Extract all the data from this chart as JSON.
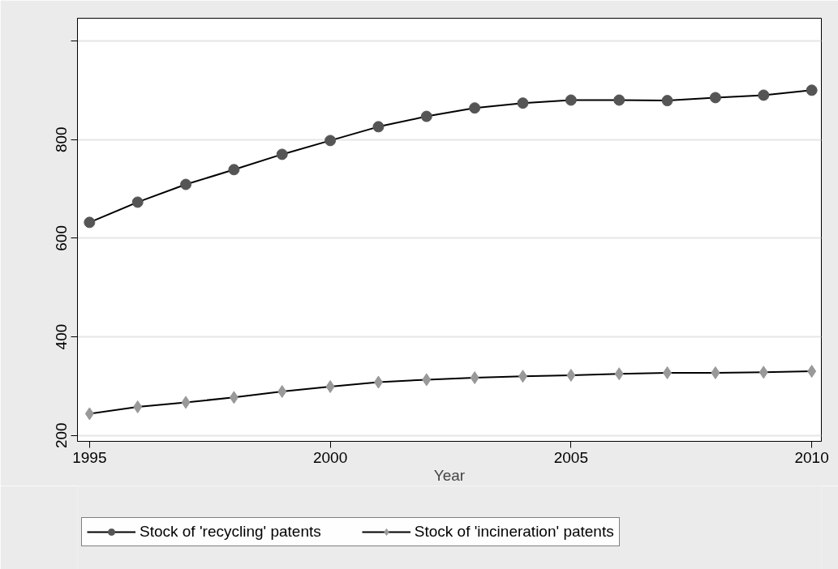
{
  "chart_data": {
    "type": "line",
    "xlabel": "Year",
    "x": [
      1995,
      1996,
      1997,
      1998,
      1999,
      2000,
      2001,
      2002,
      2003,
      2004,
      2005,
      2006,
      2007,
      2008,
      2009,
      2010
    ],
    "series": [
      {
        "name": "Stock of 'recycling' patents",
        "color": "#555555",
        "marker": "circle",
        "values": [
          632,
          673,
          709,
          739,
          770,
          798,
          826,
          847,
          864,
          874,
          880,
          880,
          879,
          885,
          890,
          900
        ]
      },
      {
        "name": "Stock of 'incineration' patents",
        "color": "#999999",
        "marker": "diamond",
        "values": [
          244,
          258,
          267,
          277,
          289,
          299,
          308,
          313,
          317,
          320,
          322,
          325,
          327,
          327,
          328,
          330
        ]
      }
    ],
    "xlim": [
      1994.75,
      2010.2
    ],
    "ylim": [
      188,
      1046
    ],
    "xticks": [
      1995,
      2000,
      2005,
      2010
    ],
    "yticks": [
      200,
      400,
      600,
      800,
      {
        "value": 1000,
        "label": null
      }
    ],
    "grid": "y",
    "legend": "bottom"
  }
}
